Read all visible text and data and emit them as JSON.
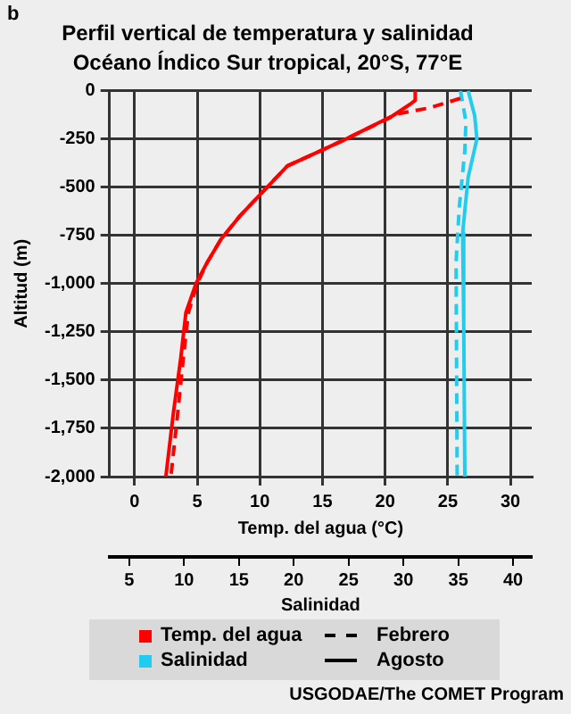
{
  "chart_data": {
    "type": "line",
    "title": "Perfil vertical de temperatura y salinidad",
    "subtitle": "Océano Índico Sur tropical, 20°S, 77°E",
    "xlabel": "Temp. del agua (°C)",
    "x2label": "Salinidad",
    "ylabel": "Altitud (m)",
    "xlim": [
      -2,
      31.7
    ],
    "xticks": [
      0,
      5,
      10,
      15,
      20,
      25,
      30
    ],
    "x2lim": [
      3.2,
      41.7
    ],
    "x2ticks": [
      5,
      10,
      15,
      20,
      25,
      30,
      35,
      40
    ],
    "ylim": [
      -2000,
      0
    ],
    "yticks": [
      {
        "value": -2000,
        "label": "-2,000"
      },
      {
        "value": -1750,
        "label": "-1,750"
      },
      {
        "value": -1500,
        "label": "-1,500"
      },
      {
        "value": -1250,
        "label": "-1,250"
      },
      {
        "value": -1000,
        "label": "-1,000"
      },
      -750,
      -500,
      -250,
      0
    ],
    "grid": true,
    "legend": "bottom",
    "marker": "none",
    "series": [
      {
        "name": "Temp. del agua",
        "color": "#ff0000",
        "line_style": "solid",
        "x": [
          22.4,
          22.4,
          22.0,
          20.6,
          16.9,
          14.9,
          12.2,
          10.0,
          8.4,
          6.9,
          5.8,
          4.9,
          4.1,
          3.7,
          3.1,
          2.5
        ],
        "values": [
          0,
          -50,
          -70,
          -130,
          -250,
          -310,
          -390,
          -540,
          -650,
          -770,
          -890,
          -1000,
          -1150,
          -1380,
          -1670,
          -2000
        ]
      },
      {
        "color": "#ff0000",
        "line_style": "dashed",
        "x": [
          26.0,
          23.5,
          21.0,
          16.9,
          14.9,
          12.2,
          10.0,
          8.4,
          6.9,
          5.8,
          5.0,
          4.3,
          3.9,
          3.4,
          2.9
        ],
        "values": [
          -40,
          -90,
          -120,
          -250,
          -310,
          -390,
          -540,
          -650,
          -770,
          -890,
          -1000,
          -1150,
          -1380,
          -1700,
          -2000
        ]
      },
      {
        "name": "Salinidad",
        "color": "#22ccee",
        "line_style": "solid",
        "axis": "x2",
        "x": [
          35.9,
          36.5,
          36.7,
          35.9,
          35.6,
          35.4,
          35.5,
          35.6
        ],
        "values": [
          0,
          -130,
          -250,
          -450,
          -620,
          -740,
          -1200,
          -2000
        ]
      },
      {
        "color": "#22ccee",
        "line_style": "dashed",
        "axis": "x2",
        "x": [
          35.2,
          35.7,
          35.6,
          35.1,
          34.8,
          34.9
        ],
        "values": [
          0,
          -160,
          -310,
          -600,
          -890,
          -2000
        ]
      }
    ],
    "annotations": [
      "b",
      "Febrero",
      "Agosto",
      "USGODAE/The COMET Program"
    ]
  }
}
